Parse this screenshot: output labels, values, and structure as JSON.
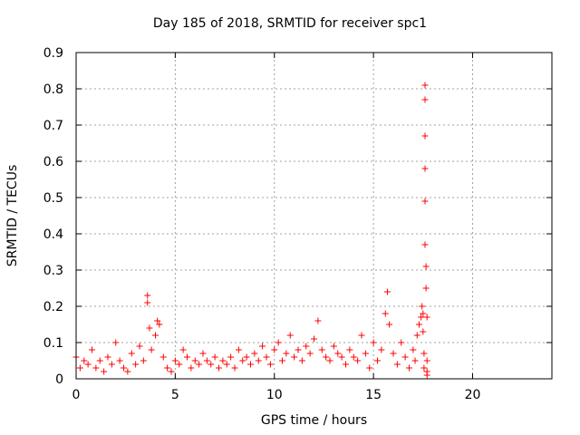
{
  "chart_data": {
    "type": "scatter",
    "title": "Day 185 of 2018, SRMTID for receiver spc1",
    "xlabel": "GPS time / hours",
    "ylabel": "SRMTID / TECUs",
    "xlim": [
      0,
      24
    ],
    "ylim": [
      0,
      0.9
    ],
    "xticks": [
      0,
      5,
      10,
      15,
      20
    ],
    "yticks": [
      0,
      0.1,
      0.2,
      0.3,
      0.4,
      0.5,
      0.6,
      0.7,
      0.8,
      0.9
    ],
    "xtick_labels": [
      "0",
      "5",
      "10",
      "15",
      "20"
    ],
    "ytick_labels": [
      "0",
      "0.1",
      "0.2",
      "0.3",
      "0.4",
      "0.5",
      "0.6",
      "0.7",
      "0.8",
      "0.9"
    ],
    "grid": true,
    "marker": "+",
    "marker_color": "#ff0000",
    "series": [
      {
        "name": "SRMTID",
        "x": [
          0.0,
          0.2,
          0.4,
          0.6,
          0.8,
          1.0,
          1.2,
          1.4,
          1.6,
          1.8,
          2.0,
          2.2,
          2.4,
          2.6,
          2.8,
          3.0,
          3.2,
          3.4,
          3.6,
          3.6,
          3.7,
          3.8,
          4.0,
          4.1,
          4.2,
          4.4,
          4.6,
          4.8,
          5.0,
          5.2,
          5.4,
          5.6,
          5.8,
          6.0,
          6.2,
          6.4,
          6.6,
          6.8,
          7.0,
          7.2,
          7.4,
          7.6,
          7.8,
          8.0,
          8.2,
          8.4,
          8.6,
          8.8,
          9.0,
          9.2,
          9.4,
          9.6,
          9.8,
          10.0,
          10.2,
          10.4,
          10.6,
          10.8,
          11.0,
          11.2,
          11.4,
          11.6,
          11.8,
          12.0,
          12.2,
          12.4,
          12.6,
          12.8,
          13.0,
          13.2,
          13.4,
          13.6,
          13.8,
          14.0,
          14.2,
          14.4,
          14.6,
          14.8,
          15.0,
          15.2,
          15.4,
          15.6,
          15.7,
          15.8,
          16.0,
          16.2,
          16.4,
          16.6,
          16.8,
          17.0,
          17.1,
          17.2,
          17.3,
          17.4,
          17.45,
          17.5,
          17.5,
          17.55,
          17.55,
          17.6,
          17.6,
          17.6,
          17.6,
          17.6,
          17.6,
          17.65,
          17.65,
          17.7,
          17.7,
          17.7,
          17.7
        ],
        "y": [
          0.06,
          0.03,
          0.05,
          0.04,
          0.08,
          0.03,
          0.05,
          0.02,
          0.06,
          0.04,
          0.1,
          0.05,
          0.03,
          0.02,
          0.07,
          0.04,
          0.09,
          0.05,
          0.23,
          0.21,
          0.14,
          0.08,
          0.12,
          0.16,
          0.15,
          0.06,
          0.03,
          0.02,
          0.05,
          0.04,
          0.08,
          0.06,
          0.03,
          0.05,
          0.04,
          0.07,
          0.05,
          0.04,
          0.06,
          0.03,
          0.05,
          0.04,
          0.06,
          0.03,
          0.08,
          0.05,
          0.06,
          0.04,
          0.07,
          0.05,
          0.09,
          0.06,
          0.04,
          0.08,
          0.1,
          0.05,
          0.07,
          0.12,
          0.06,
          0.08,
          0.05,
          0.09,
          0.07,
          0.11,
          0.16,
          0.08,
          0.06,
          0.05,
          0.09,
          0.07,
          0.06,
          0.04,
          0.08,
          0.06,
          0.05,
          0.12,
          0.07,
          0.03,
          0.1,
          0.05,
          0.08,
          0.18,
          0.24,
          0.15,
          0.07,
          0.04,
          0.1,
          0.06,
          0.03,
          0.08,
          0.05,
          0.12,
          0.15,
          0.17,
          0.2,
          0.18,
          0.13,
          0.07,
          0.03,
          0.81,
          0.77,
          0.67,
          0.58,
          0.49,
          0.37,
          0.31,
          0.25,
          0.17,
          0.05,
          0.02,
          0.01
        ]
      }
    ]
  }
}
